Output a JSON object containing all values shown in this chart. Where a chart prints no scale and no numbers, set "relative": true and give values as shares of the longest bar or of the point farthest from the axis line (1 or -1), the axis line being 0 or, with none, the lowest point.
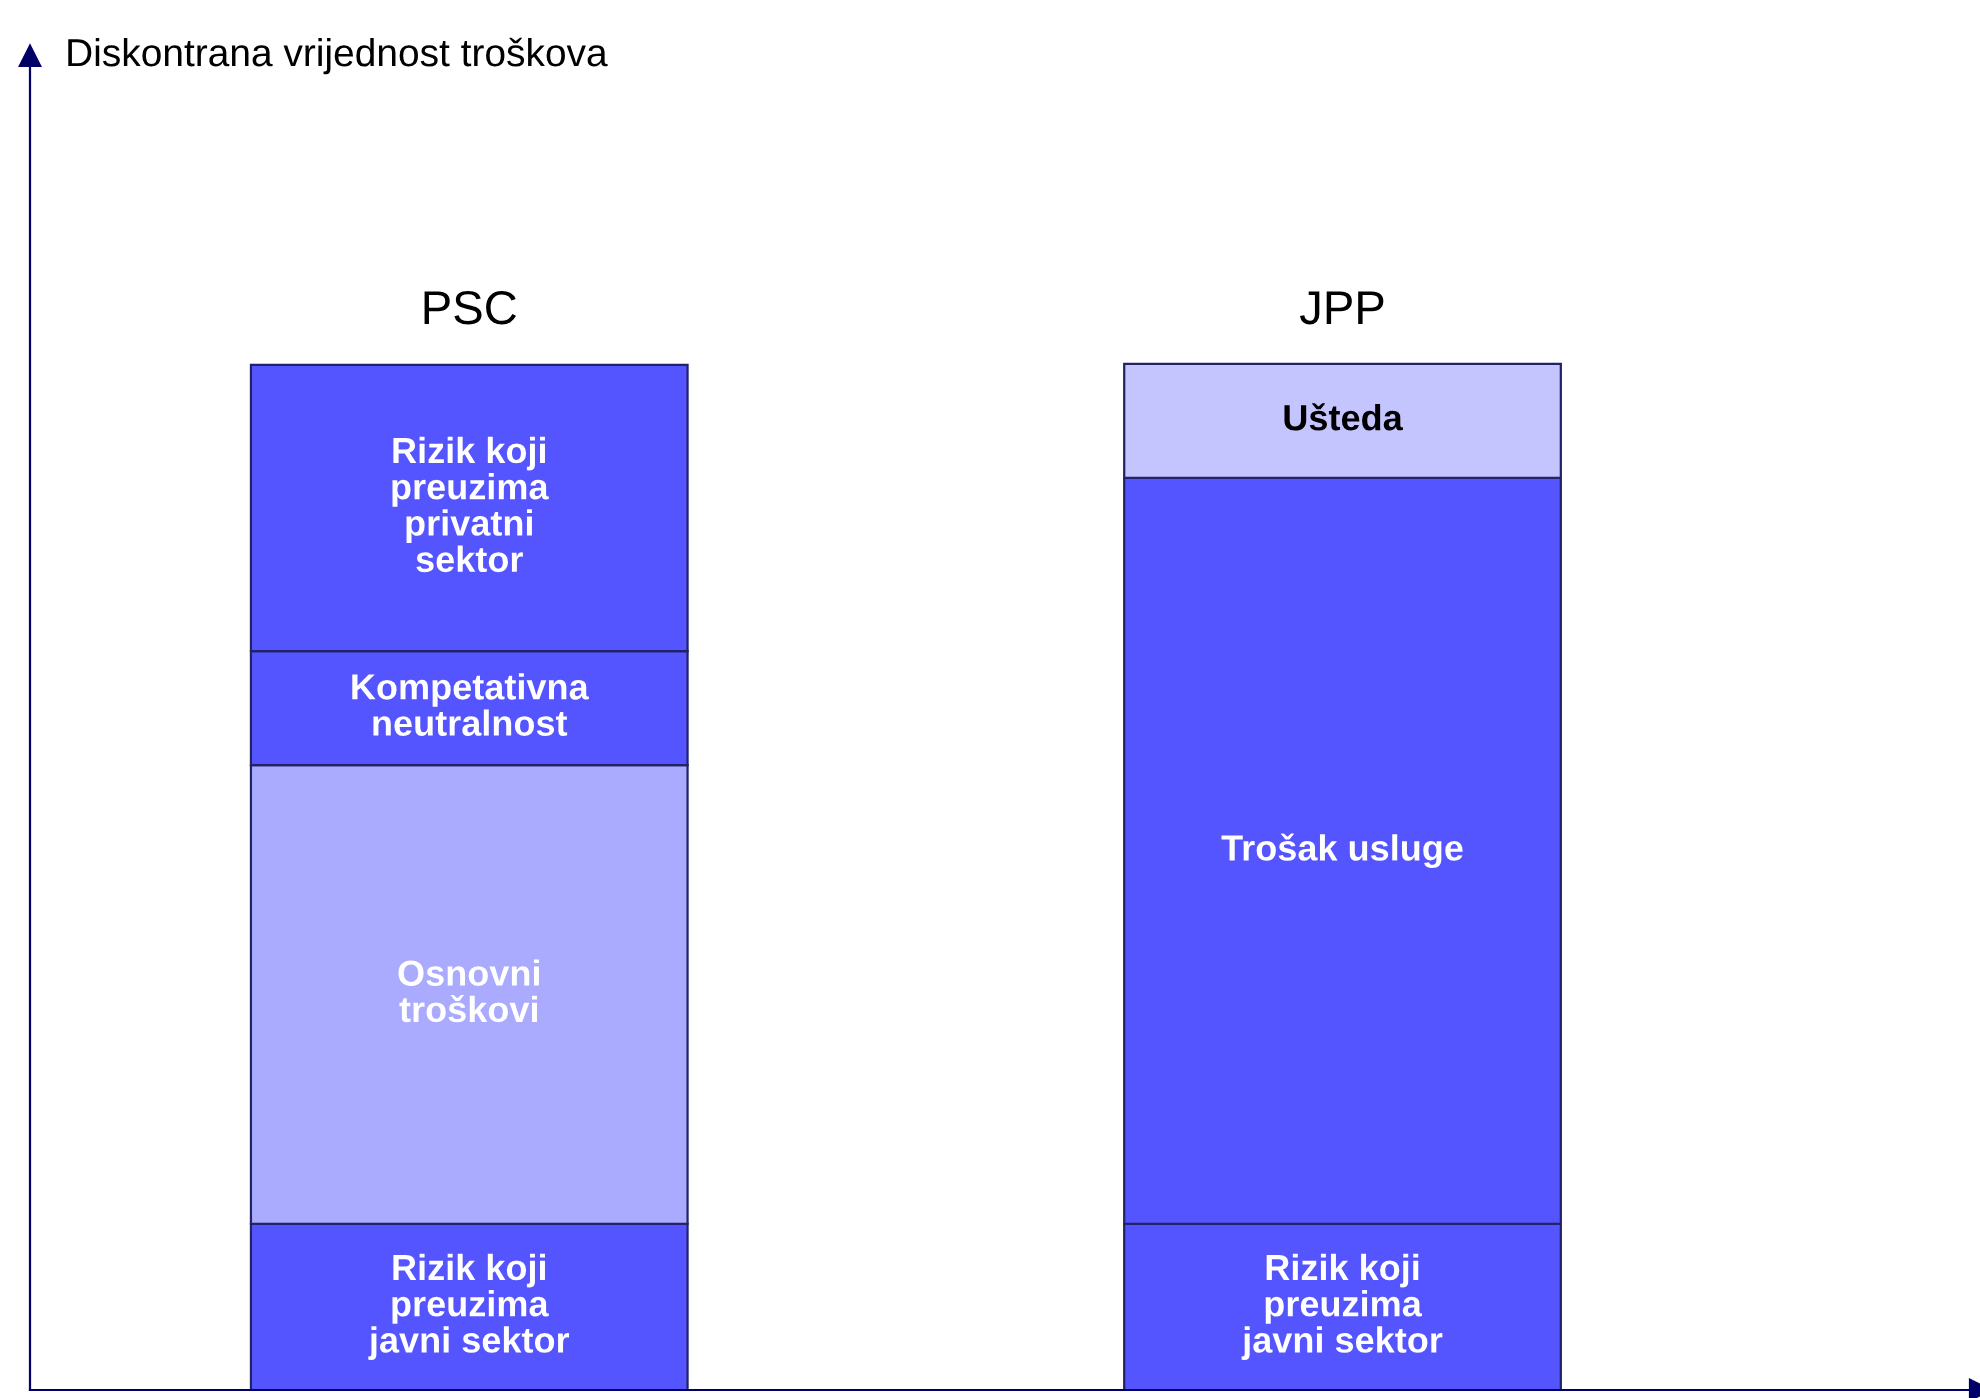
{
  "chart_data": {
    "type": "bar",
    "stacked": true,
    "relative": true,
    "annotations": [
      "Diskontrana vrijednost troškova"
    ],
    "categories": [
      "PSC",
      "JPP"
    ],
    "legend": false,
    "grid": false,
    "series": [
      {
        "name": "Rizik koji preuzima javni sektor",
        "color": "#5555ff",
        "values": [
          0.162,
          0.162
        ]
      },
      {
        "name": "Osnovni troškovi",
        "color": "#aaaaff",
        "values": [
          0.447,
          null
        ]
      },
      {
        "name": "Trošak usluge",
        "color": "#5555ff",
        "values": [
          null,
          0.727
        ]
      },
      {
        "name": "Kompetativna neutralnost",
        "color": "#5555ff",
        "values": [
          0.111,
          null
        ]
      },
      {
        "name": "Rizik koji preuzima privatni sektor",
        "color": "#5555ff",
        "values": [
          0.279,
          null
        ]
      },
      {
        "name": "Ušteda",
        "color": "#c4c4ff",
        "values": [
          null,
          0.111
        ]
      }
    ]
  }
}
